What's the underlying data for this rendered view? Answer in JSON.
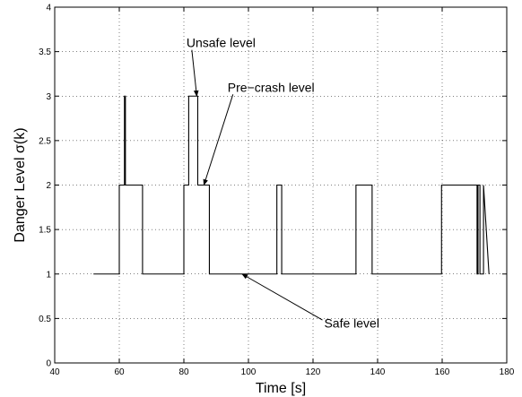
{
  "chart_data": {
    "type": "line",
    "xlabel": "Time [s]",
    "ylabel": "Danger Level  σ(k)",
    "xlim": [
      40,
      180
    ],
    "ylim": [
      0,
      4
    ],
    "xticks": [
      40,
      60,
      80,
      100,
      120,
      140,
      160,
      180
    ],
    "yticks": [
      0,
      0.5,
      1,
      1.5,
      2,
      2.5,
      3,
      3.5,
      4
    ],
    "ytick_labels": [
      "0",
      "0.5",
      "1",
      "1.5",
      "2",
      "2.5",
      "3",
      "3.5",
      "4"
    ],
    "grid": true,
    "series": [
      {
        "color": "#000000",
        "x": [
          52,
          60,
          60,
          61.6,
          61.6,
          61.9,
          61.9,
          67.2,
          67.2,
          80,
          80,
          81.5,
          81.5,
          84.3,
          84.3,
          87.9,
          87.9,
          108.8,
          108.8,
          110.3,
          110.3,
          133.3,
          133.3,
          138.3,
          138.3,
          159.8,
          159.8,
          170.8,
          170.8,
          171.1,
          171.1,
          171.7,
          171.7,
          172.8,
          172.8,
          174.5
        ],
        "y": [
          1,
          1,
          2,
          2,
          3,
          3,
          2,
          2,
          1,
          1,
          2,
          2,
          3,
          3,
          2,
          2,
          1,
          1,
          2,
          2,
          1,
          1,
          2,
          2,
          1,
          1,
          2,
          2,
          1,
          1,
          2,
          2,
          1,
          1,
          2,
          1
        ]
      }
    ],
    "annotations": [
      {
        "text": "Unsafe level",
        "at": [
          84,
          3
        ],
        "label_pos": [
          91.5,
          3.55
        ]
      },
      {
        "text": "Pre−crash level",
        "at": [
          86.2,
          2
        ],
        "label_pos": [
          107,
          3.05
        ]
      },
      {
        "text": "Safe level",
        "at": [
          98,
          1
        ],
        "label_pos": [
          132,
          0.4
        ]
      }
    ]
  }
}
